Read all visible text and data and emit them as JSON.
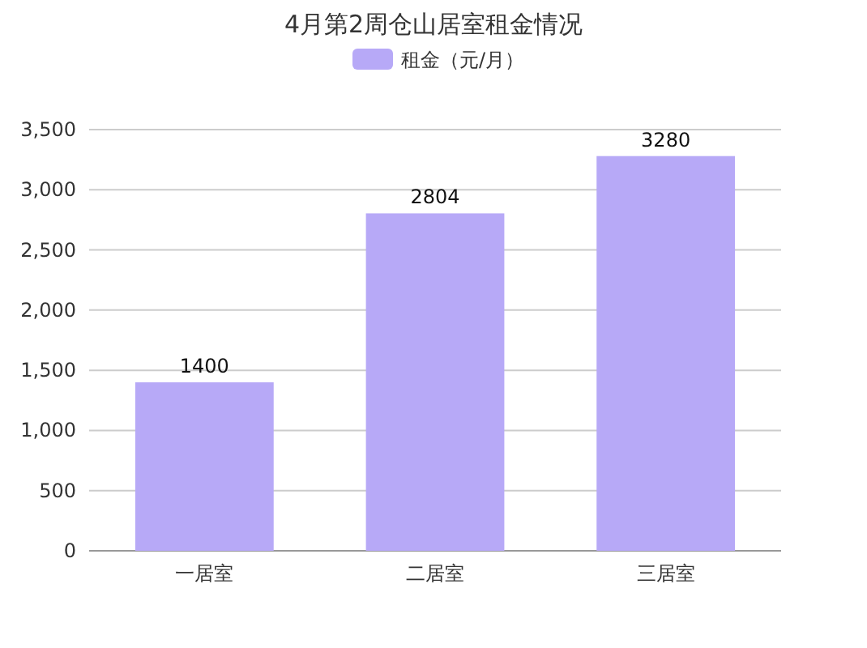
{
  "chart_data": {
    "type": "bar",
    "title": "4月第2周仓山居室租金情况",
    "categories": [
      "一居室",
      "二居室",
      "三居室"
    ],
    "series": [
      {
        "name": "租金（元/月）",
        "color": "#b7a9f7",
        "values": [
          1400,
          2804,
          3280
        ]
      }
    ],
    "ylim": [
      0,
      3500
    ],
    "yticks": [
      0,
      {
        "value": 500,
        "label": "500"
      },
      {
        "value": 1000,
        "label": "1,000"
      },
      {
        "value": 1500,
        "label": "1,500"
      },
      {
        "value": 2000,
        "label": "2,000"
      },
      {
        "value": 2500,
        "label": "2,500"
      },
      {
        "value": 3000,
        "label": "3,000"
      },
      {
        "value": 3500,
        "label": "3,500"
      }
    ],
    "grid": "y",
    "legend": "top",
    "data_labels": true
  }
}
